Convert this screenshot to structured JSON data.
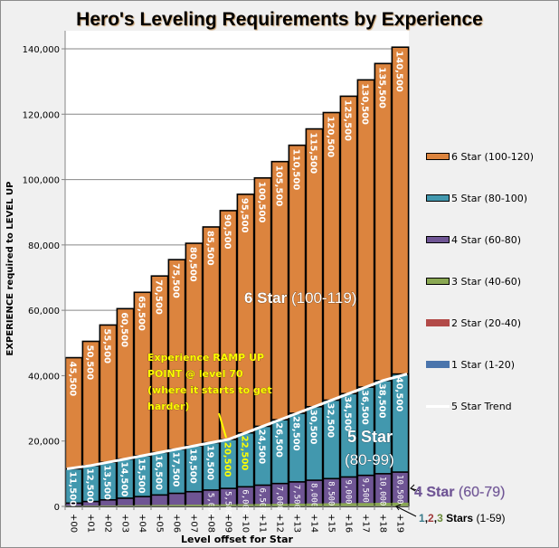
{
  "chart_data": {
    "type": "bar",
    "title": "Hero's Leveling Requirements by Experience",
    "xlabel": "Level offset for Star",
    "ylabel": "EXPERIENCE  required to LEVEL UP",
    "ylim": [
      0,
      140000
    ],
    "yticks": [
      "0",
      "20,000",
      "40,000",
      "60,000",
      "80,000",
      "100,000",
      "120,000",
      "140,000"
    ],
    "ytick_values": [
      0,
      20000,
      40000,
      60000,
      80000,
      100000,
      120000,
      140000
    ],
    "grid": true,
    "legend_position": "right",
    "categories": [
      "+00",
      "+01",
      "+02",
      "+03",
      "+04",
      "+05",
      "+06",
      "+07",
      "+08",
      "+09",
      "+10",
      "+11",
      "+12",
      "+13",
      "+14",
      "+15",
      "+16",
      "+17",
      "+18",
      "+19"
    ],
    "series": [
      {
        "name": "6 Star (100-120)",
        "color": "#dc843e",
        "labeled": true,
        "label_style": "white",
        "values": [
          45500,
          50500,
          55500,
          60500,
          65500,
          70500,
          75500,
          80500,
          85500,
          90500,
          95500,
          100500,
          105500,
          110500,
          115500,
          120500,
          125500,
          130500,
          135500,
          140500
        ]
      },
      {
        "name": "5 Star (80-100)",
        "color": "#4298ae",
        "labeled": true,
        "label_style": "white",
        "values": [
          11500,
          12500,
          13500,
          14500,
          15500,
          16500,
          17500,
          18500,
          19500,
          20500,
          22500,
          24500,
          26500,
          28500,
          30500,
          32500,
          34500,
          36500,
          38500,
          40500
        ]
      },
      {
        "name": "4 Star (60-80)",
        "color": "#6f5594",
        "labeled_from_index": 8,
        "label_style": "small",
        "values": [
          1000,
          1500,
          2000,
          2500,
          3000,
          3500,
          4000,
          4500,
          5000,
          5500,
          6000,
          6500,
          7000,
          7500,
          8000,
          8500,
          9000,
          9500,
          10000,
          10500
        ]
      },
      {
        "name": "3 Star (40-60)",
        "color": "#8aa853",
        "labeled": false,
        "values": [
          200,
          250,
          300,
          350,
          400,
          450,
          500,
          550,
          600,
          650,
          700,
          750,
          800,
          850,
          900,
          950,
          1000,
          1050,
          1100,
          1150
        ]
      },
      {
        "name": "2 Star (20-40)",
        "color": "#b24a48",
        "labeled": false,
        "values": []
      },
      {
        "name": "1 Star (1-20)",
        "color": "#4a74ac",
        "labeled": false,
        "values": []
      }
    ],
    "trend": {
      "name": "5 Star Trend",
      "color": "#ffffff",
      "based_on": "5 Star (80-100)"
    },
    "highlighted_labels": {
      "series": "5 Star (80-100)",
      "indices": [
        9,
        10
      ],
      "color": "#ffff00"
    },
    "annotations": {
      "ramp_up": [
        "Experience RAMP UP",
        "POINT @ level 70",
        "(where it starts to get",
        "harder)"
      ],
      "six_star_bold": "6 Star",
      "six_star_range": "(100-119)",
      "five_star_bold": "5 Star",
      "five_star_range": "(80-99)",
      "four_star_bold": "4 Star",
      "four_star_range": "(60-79)",
      "low_stars_1": "1",
      "low_stars_2": "2",
      "low_stars_3": "3",
      "low_stars_comma": ",",
      "low_stars_bold": " Stars",
      "low_stars_range": " (1-59)"
    }
  },
  "legend": [
    {
      "label": "6 Star (100-120)",
      "color": "#dc843e",
      "border": true
    },
    {
      "label": "5 Star (80-100)",
      "color": "#4298ae",
      "border": true
    },
    {
      "label": "4 Star (60-80)",
      "color": "#6f5594",
      "border": true
    },
    {
      "label": "3 Star (40-60)",
      "color": "#8aa853",
      "border": true
    },
    {
      "label": "2 Star (20-40)",
      "color": "#b24a48",
      "border": false
    },
    {
      "label": "1 Star (1-20)",
      "color": "#4a74ac",
      "border": false
    },
    {
      "label": "5 Star Trend",
      "color": "#ffffff",
      "line": true
    }
  ]
}
